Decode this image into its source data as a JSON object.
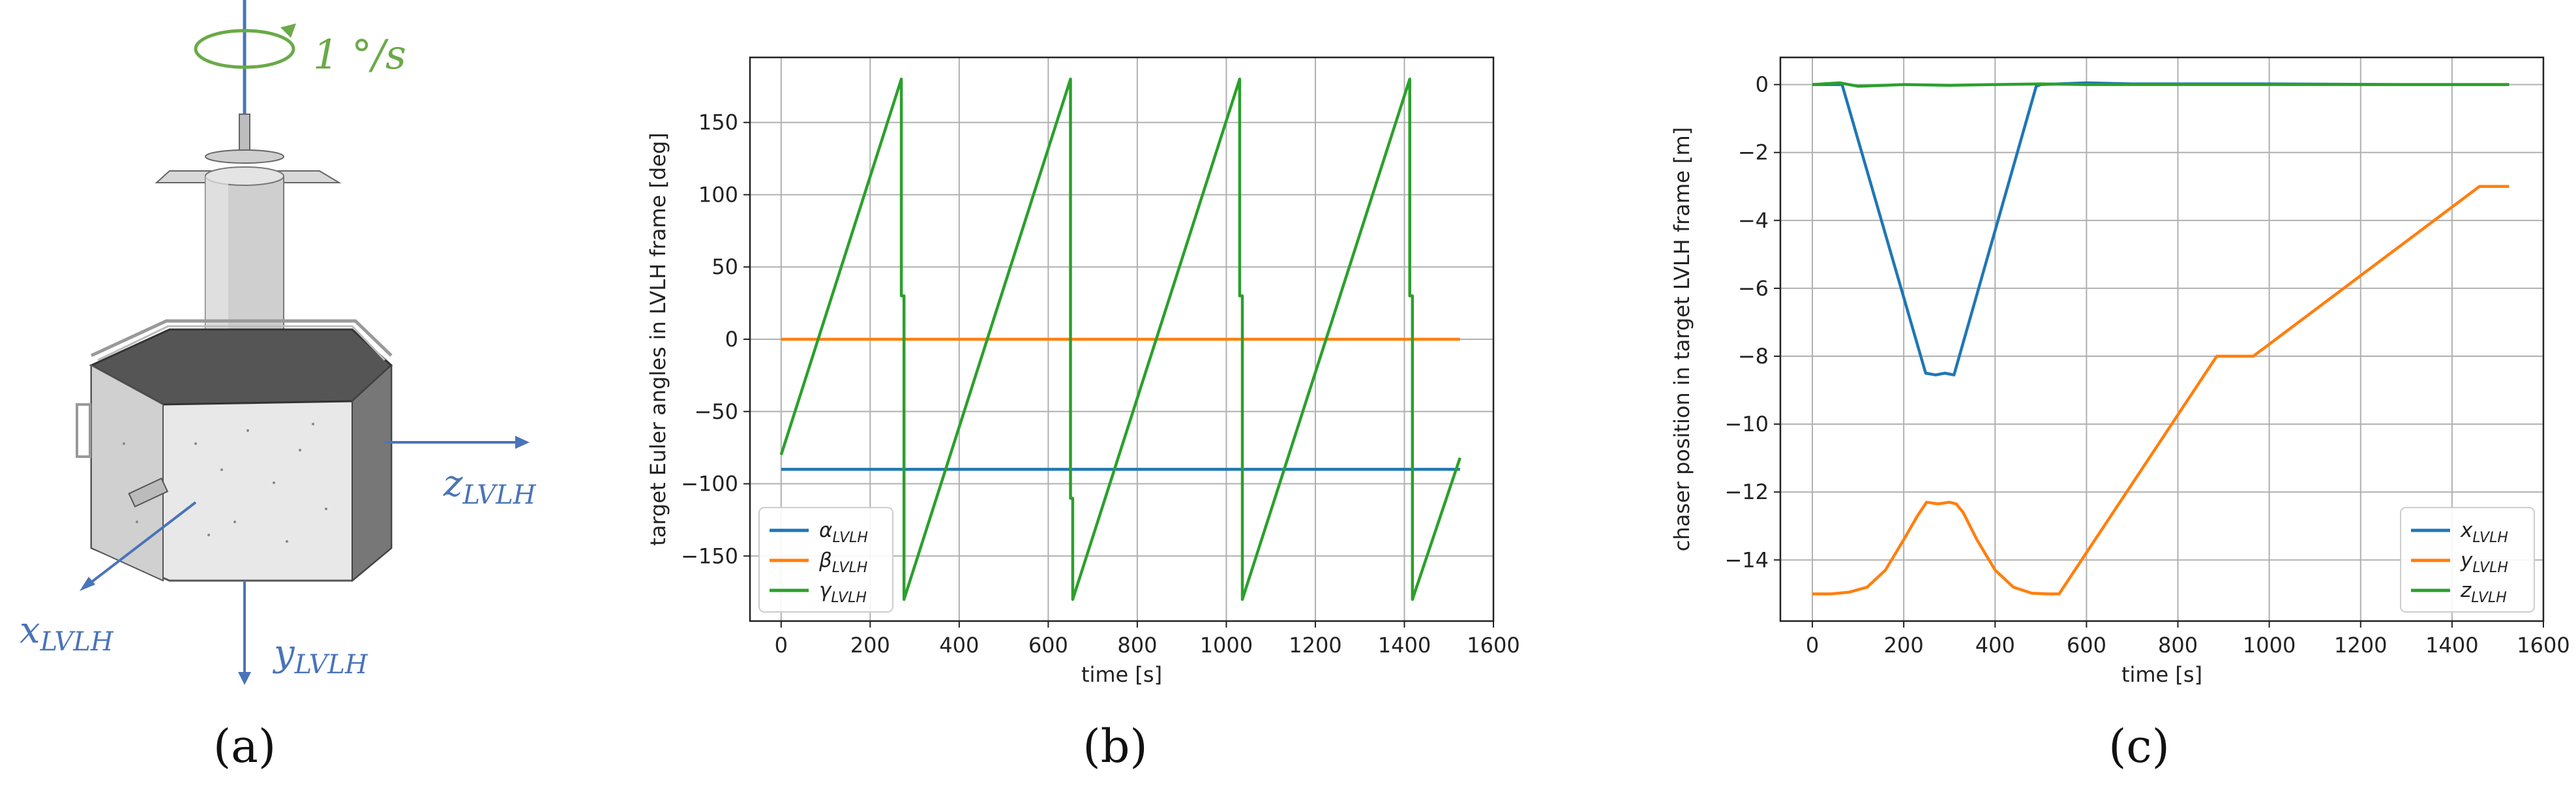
{
  "panels": {
    "a": {
      "label": "(a)",
      "rotation_label": "1 °/s",
      "axis_labels": {
        "z": "zLVLH",
        "x": "xLVLH",
        "y": "yLVLH"
      },
      "colors": {
        "axes": "#4a74b8",
        "rotation": "#6aaa48"
      }
    },
    "b": {
      "label": "(b)"
    },
    "c": {
      "label": "(c)"
    }
  },
  "chart_data": [
    {
      "id": "b",
      "type": "line",
      "xlabel": "time [s]",
      "ylabel": "target Euler angles in LVLH frame [deg]",
      "xlim": [
        -70,
        1600
      ],
      "ylim": [
        -195,
        195
      ],
      "xticks": [
        0,
        200,
        400,
        600,
        800,
        1000,
        1200,
        1400,
        1600
      ],
      "yticks": [
        -150,
        -100,
        -50,
        0,
        50,
        100,
        150
      ],
      "grid": true,
      "legend": "lower-left",
      "series": [
        {
          "name": "αLVLH",
          "sym": "α",
          "color": "#1f77b4",
          "x": [
            0,
            1525
          ],
          "y": [
            -90,
            -90
          ]
        },
        {
          "name": "βLVLH",
          "sym": "β",
          "color": "#ff7f0e",
          "x": [
            0,
            1525
          ],
          "y": [
            0,
            0
          ]
        },
        {
          "name": "γLVLH",
          "sym": "γ",
          "color": "#2ca02c",
          "x": [
            0,
            270,
            270,
            276,
            276,
            650,
            650,
            655,
            655,
            1030,
            1030,
            1036,
            1036,
            1412,
            1412,
            1418,
            1418,
            1525
          ],
          "y": [
            -80,
            180,
            30,
            30,
            -180,
            180,
            -110,
            -110,
            -180,
            180,
            30,
            30,
            -180,
            180,
            30,
            30,
            -180,
            -82
          ]
        }
      ]
    },
    {
      "id": "c",
      "type": "line",
      "xlabel": "time [s]",
      "ylabel": "chaser position in target LVLH frame [m]",
      "xlim": [
        -70,
        1600
      ],
      "ylim": [
        -15.8,
        0.8
      ],
      "xticks": [
        0,
        200,
        400,
        600,
        800,
        1000,
        1200,
        1400,
        1600
      ],
      "yticks": [
        -14,
        -12,
        -10,
        -8,
        -6,
        -4,
        -2,
        0
      ],
      "grid": true,
      "legend": "lower-right",
      "series": [
        {
          "name": "xLVLH",
          "sym": "x",
          "color": "#1f77b4",
          "x": [
            0,
            65,
            248,
            270,
            290,
            310,
            490,
            500,
            600,
            700,
            1000,
            1300,
            1525
          ],
          "y": [
            0,
            0,
            -8.5,
            -8.55,
            -8.5,
            -8.55,
            -0.05,
            0,
            0.05,
            0.02,
            0.02,
            0,
            0
          ]
        },
        {
          "name": "yLVLH",
          "sym": "y",
          "color": "#ff7f0e",
          "x": [
            0,
            40,
            80,
            120,
            160,
            200,
            230,
            250,
            275,
            300,
            315,
            330,
            360,
            400,
            440,
            480,
            515,
            540,
            885,
            910,
            965,
            1460,
            1525
          ],
          "y": [
            -15,
            -15,
            -14.95,
            -14.8,
            -14.3,
            -13.4,
            -12.7,
            -12.3,
            -12.35,
            -12.3,
            -12.35,
            -12.6,
            -13.4,
            -14.3,
            -14.8,
            -14.98,
            -15,
            -15,
            -8,
            -8,
            -8,
            -3,
            -3
          ]
        },
        {
          "name": "zLVLH",
          "sym": "z",
          "color": "#2ca02c",
          "x": [
            0,
            60,
            100,
            200,
            300,
            400,
            500,
            600,
            800,
            1000,
            1200,
            1400,
            1525
          ],
          "y": [
            0,
            0.05,
            -0.05,
            0,
            -0.02,
            0,
            0.02,
            0,
            0,
            0,
            0,
            0,
            0
          ]
        }
      ]
    }
  ]
}
